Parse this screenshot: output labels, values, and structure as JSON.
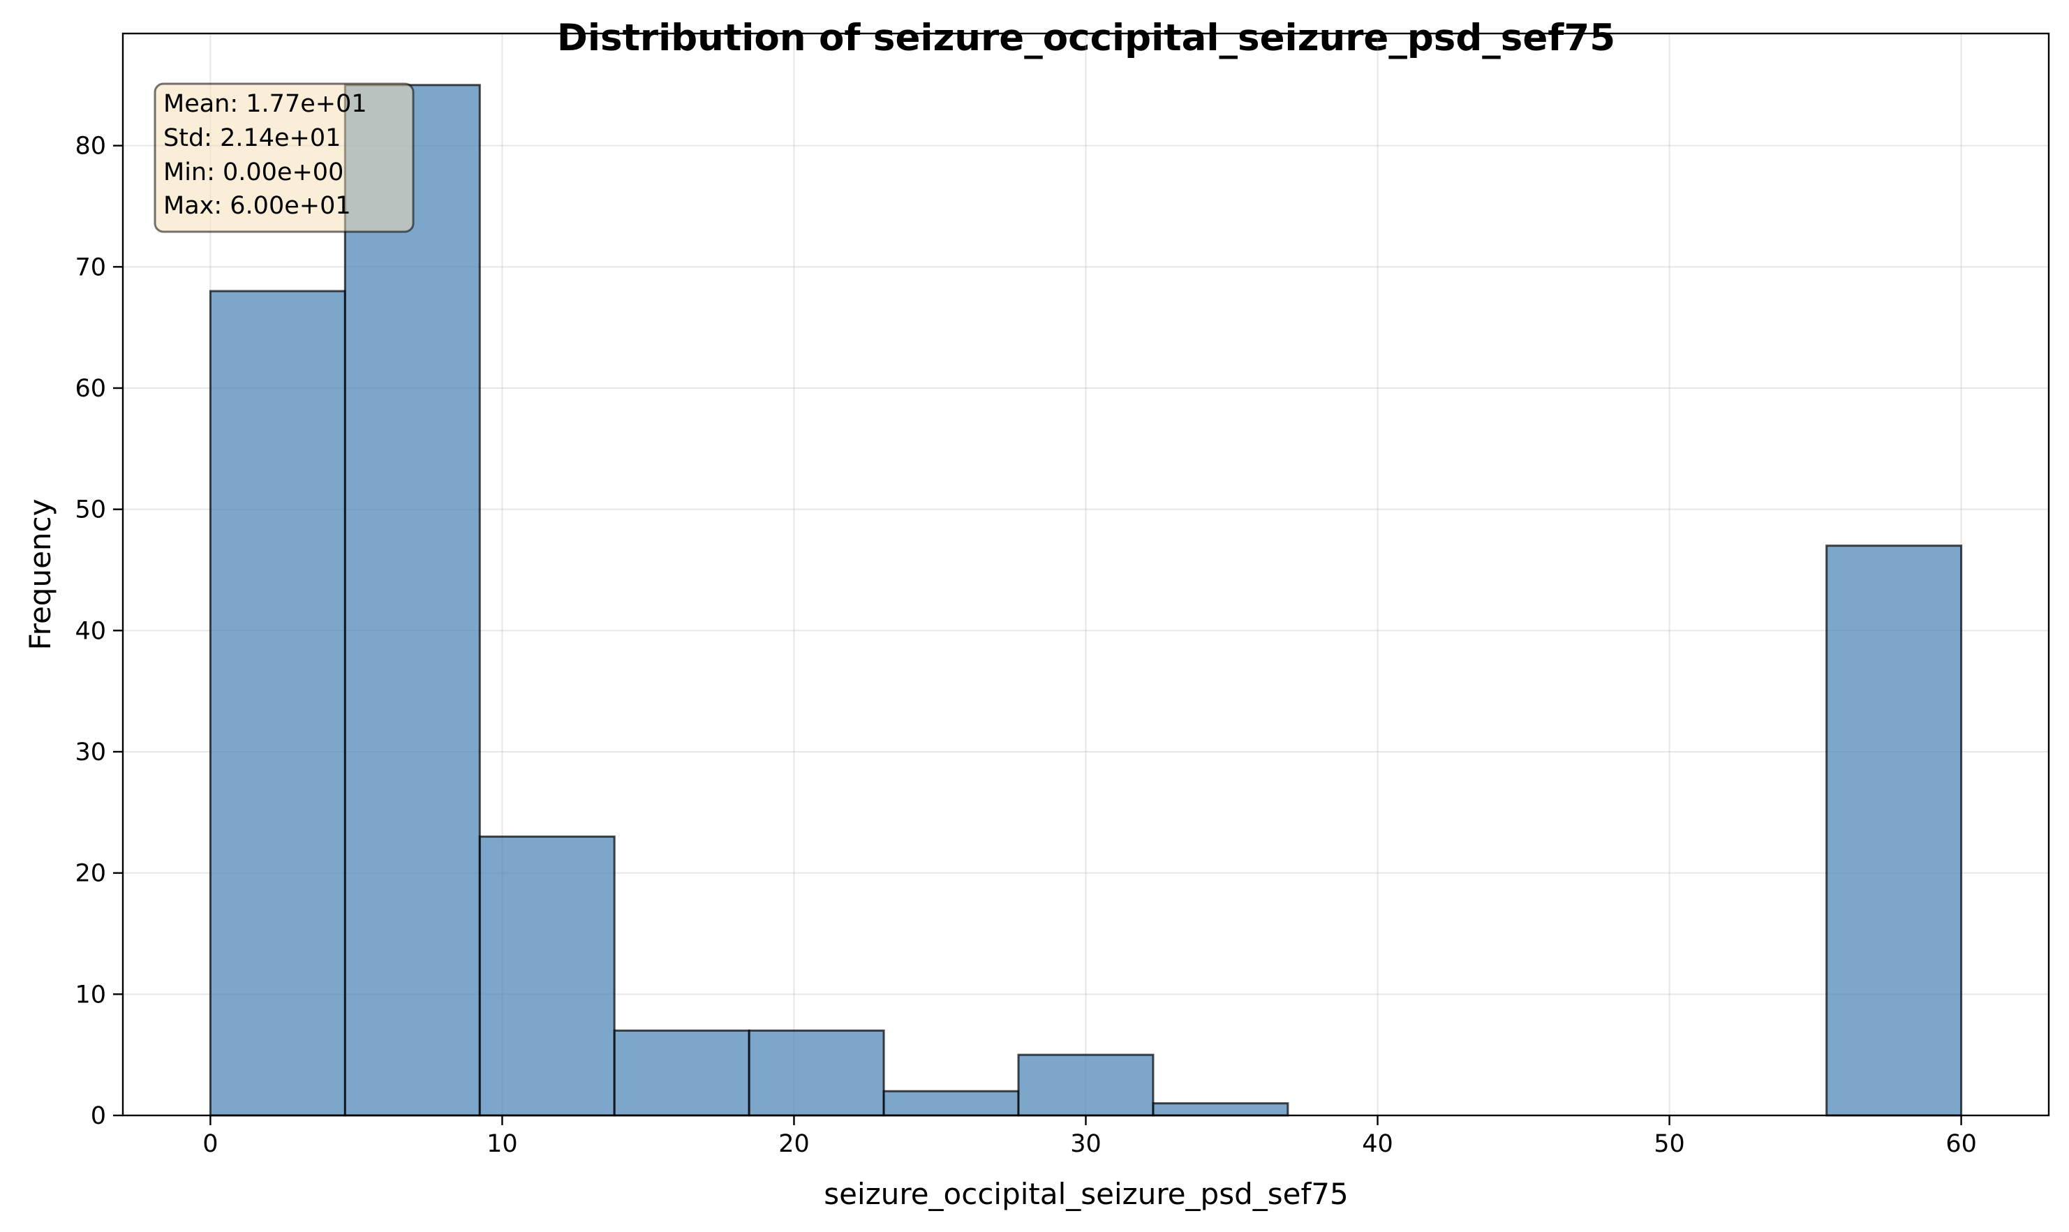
{
  "chart_data": {
    "type": "bar",
    "title": "Distribution of seizure_occipital_seizure_psd_sef75",
    "xlabel": "seizure_occipital_seizure_psd_sef75",
    "ylabel": "Frequency",
    "xlim": [
      -3,
      63
    ],
    "ylim": [
      0,
      89.25
    ],
    "xticks": [
      0,
      10,
      20,
      30,
      40,
      50,
      60
    ],
    "yticks": [
      0,
      10,
      20,
      30,
      40,
      50,
      60,
      70,
      80
    ],
    "grid": true,
    "bin_edges": [
      0,
      4.615,
      9.231,
      13.846,
      18.462,
      23.077,
      27.692,
      32.308,
      36.923,
      41.538,
      46.154,
      50.769,
      55.385,
      60
    ],
    "values": [
      68,
      85,
      23,
      7,
      7,
      2,
      5,
      1,
      0,
      0,
      0,
      0,
      47
    ],
    "colors": {
      "bar_fill": "#4682b4",
      "bar_edge": "#000000",
      "stats_box": "#f5deb3"
    },
    "stats_box": {
      "placement": "top-left",
      "lines": [
        "Mean: 1.77e+01",
        "Std: 2.14e+01",
        "Min: 0.00e+00",
        "Max: 6.00e+01"
      ]
    }
  }
}
